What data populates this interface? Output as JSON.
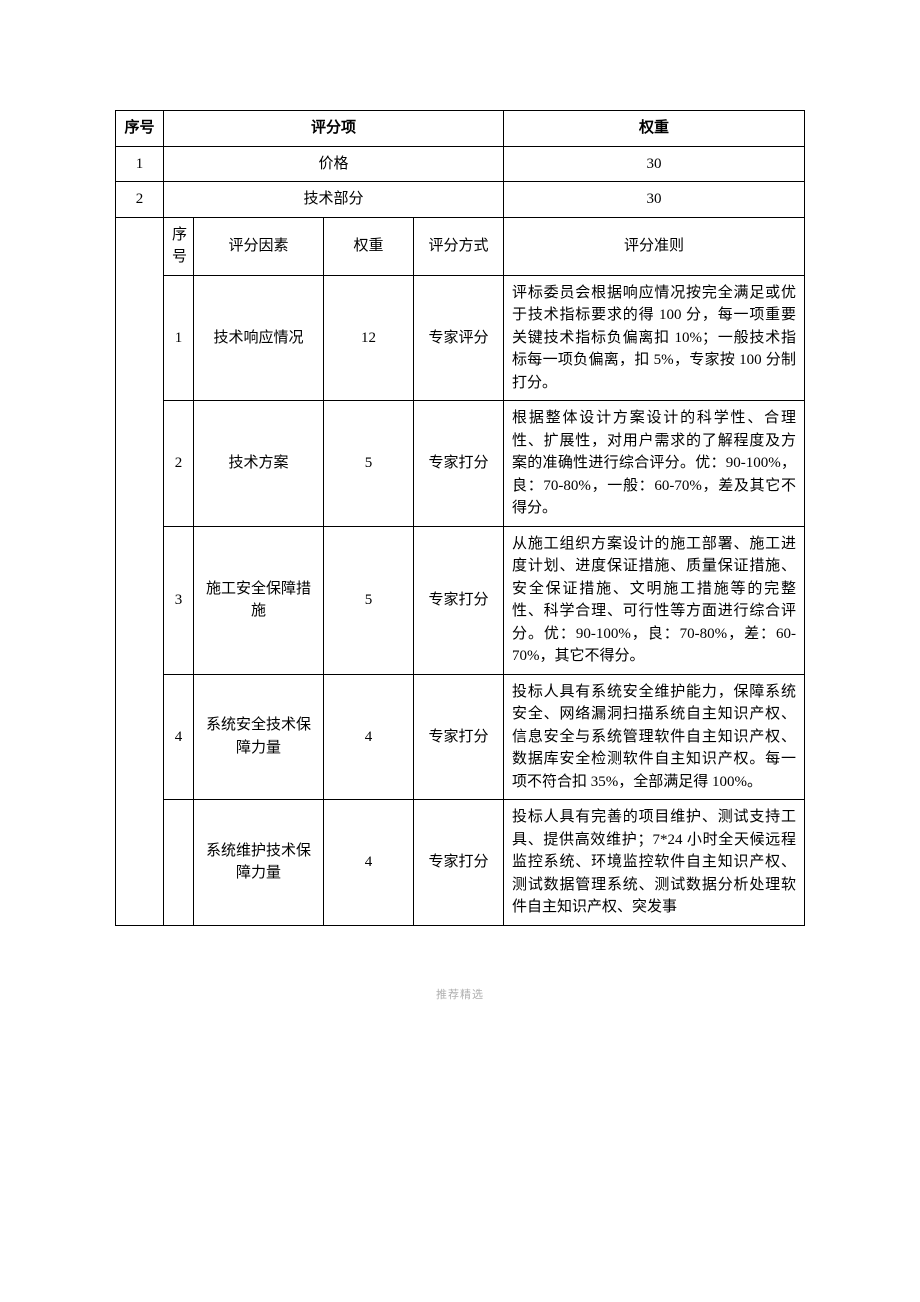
{
  "header": {
    "seq_label": "序号",
    "item_label": "评分项",
    "weight_label": "权重"
  },
  "top_rows": [
    {
      "seq": "1",
      "item": "价格",
      "weight": "30"
    },
    {
      "seq": "2",
      "item": "技术部分",
      "weight": "30"
    }
  ],
  "sub_header": {
    "seq": "序号",
    "factor": "评分因素",
    "weight": "权重",
    "method": "评分方式",
    "rule": "评分准则"
  },
  "sub_rows": [
    {
      "seq": "1",
      "factor": "技术响应情况",
      "weight": "12",
      "method": "专家评分",
      "rule": "评标委员会根据响应情况按完全满足或优于技术指标要求的得 100 分，每一项重要关键技术指标负偏离扣 10%；一般技术指标每一项负偏离，扣 5%，专家按 100 分制打分。"
    },
    {
      "seq": "2",
      "factor": "技术方案",
      "weight": "5",
      "method": "专家打分",
      "rule": "根据整体设计方案设计的科学性、合理性、扩展性，对用户需求的了解程度及方案的准确性进行综合评分。优：90-100%，良：70-80%，一般：60-70%，差及其它不得分。"
    },
    {
      "seq": "3",
      "factor": "施工安全保障措施",
      "weight": "5",
      "method": "专家打分",
      "rule": "从施工组织方案设计的施工部署、施工进度计划、进度保证措施、质量保证措施、安全保证措施、文明施工措施等的完整性、科学合理、可行性等方面进行综合评分。优：90-100%，良：70-80%，差：60-70%，其它不得分。"
    },
    {
      "seq": "4",
      "factor": "系统安全技术保障力量",
      "weight": "4",
      "method": "专家打分",
      "rule": "投标人具有系统安全维护能力，保障系统安全、网络漏洞扫描系统自主知识产权、信息安全与系统管理软件自主知识产权、数据库安全检测软件自主知识产权。每一项不符合扣 35%，全部满足得 100%。"
    },
    {
      "seq": "",
      "factor": "系统维护技术保障力量",
      "weight": "4",
      "method": "专家打分",
      "rule": "投标人具有完善的项目维护、测试支持工具、提供高效维护；7*24 小时全天候远程监控系统、环境监控软件自主知识产权、测试数据管理系统、测试数据分析处理软件自主知识产权、突发事"
    }
  ],
  "footer": "推荐精选"
}
